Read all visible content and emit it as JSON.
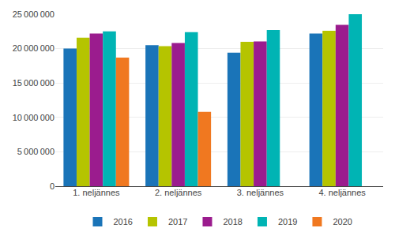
{
  "chart_data": {
    "type": "bar",
    "categories": [
      "1. neljännes",
      "2. neljännes",
      "3. neljännes",
      "4. neljännes"
    ],
    "series": [
      {
        "name": "2016",
        "color": "#1a74b8",
        "values": [
          20000000,
          20500000,
          19400000,
          22200000
        ]
      },
      {
        "name": "2017",
        "color": "#b5c400",
        "values": [
          21600000,
          20350000,
          21000000,
          22600000
        ]
      },
      {
        "name": "2018",
        "color": "#9b1c8e",
        "values": [
          22200000,
          20800000,
          21050000,
          23450000
        ]
      },
      {
        "name": "2019",
        "color": "#00b4b4",
        "values": [
          22500000,
          22400000,
          22700000,
          25000000
        ]
      },
      {
        "name": "2020",
        "color": "#f07820",
        "values": [
          18700000,
          10800000,
          null,
          null
        ]
      }
    ],
    "ylim": [
      0,
      25000000
    ],
    "yticks": [
      0,
      {
        "value": 5000000,
        "label": "5 000 000"
      },
      {
        "value": 10000000,
        "label": "10 000 000"
      },
      {
        "value": 15000000,
        "label": "15 000 000"
      },
      {
        "value": 20000000,
        "label": "20 000 000"
      },
      {
        "value": 25000000,
        "label": "25 000 000"
      }
    ],
    "grid": true,
    "legend": "bottom"
  }
}
